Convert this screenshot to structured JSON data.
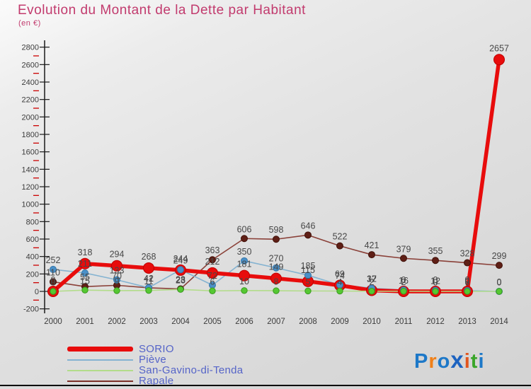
{
  "title": "Evolution du Montant de la Dette par Habitant",
  "subtitle": "(en €)",
  "colors": {
    "title": "#c23b6e",
    "legend_text": "#5564c8",
    "axis_text": "#3c3c3c",
    "data_label": "#474747",
    "axis_line": "#1a1a1a",
    "minor_tick": "#cc0000"
  },
  "chart_data": {
    "type": "line",
    "x": [
      2000,
      2001,
      2002,
      2003,
      2004,
      2005,
      2006,
      2007,
      2008,
      2009,
      2010,
      2011,
      2012,
      2013,
      2014
    ],
    "y_ticks": [
      2800,
      2600,
      2400,
      2200,
      2000,
      1800,
      1600,
      1400,
      1200,
      1000,
      800,
      600,
      400,
      200,
      0,
      -200
    ],
    "ylim": [
      -200,
      2800
    ],
    "grid": false,
    "legend_position": "bottom-left",
    "series": [
      {
        "name": "Rapale",
        "color": "#8a4038",
        "dot": "#5f1f16",
        "dot_stroke": "#401109",
        "width": 1.6,
        "r": 4.5,
        "dot_z": 1,
        "values": [
          110,
          55,
          70,
          41,
          28,
          363,
          606,
          598,
          646,
          522,
          421,
          379,
          355,
          328,
          299
        ]
      },
      {
        "name": "Piève",
        "color": "#85b3d1",
        "dot": "#4a90c8",
        "dot_stroke": "#3576a8",
        "width": 1.6,
        "r": 4.5,
        "dot_z": 3,
        "values": [
          252,
          211,
          133,
          42,
          249,
          72,
          350,
          270,
          185,
          74,
          37,
          16,
          12,
          9,
          0
        ]
      },
      {
        "name": "SORIO",
        "color": "#e80c0c",
        "dot": "#e80c0c",
        "dot_stroke": "#c00000",
        "width": 5.5,
        "r": 7.5,
        "dot_z": 2,
        "values": [
          0,
          318,
          294,
          268,
          244,
          212,
          181,
          149,
          115,
          69,
          12,
          0,
          0,
          0,
          2657
        ]
      },
      {
        "name": "San-Gavino-di-Tenda",
        "color": "#b2dc8a",
        "dot": "#55c832",
        "dot_stroke": "#3a9a20",
        "width": 1.6,
        "r": 4.2,
        "dot_z": 4,
        "values": [
          0,
          15,
          9,
          11,
          23,
          6,
          10,
          8,
          5,
          4,
          2,
          2,
          0,
          0,
          0
        ]
      }
    ]
  },
  "legend": {
    "items": [
      {
        "label": "SORIO",
        "color": "#e80c0c",
        "thick": true
      },
      {
        "label": "Piève",
        "color": "#85b3d1",
        "thick": false
      },
      {
        "label": "San-Gavino-di-Tenda",
        "color": "#b2dc8a",
        "thick": false
      },
      {
        "label": "Rapale",
        "color": "#7b3028",
        "thick": false
      }
    ]
  },
  "logo": {
    "letters": [
      {
        "ch": "P",
        "color": "#1d78c8",
        "big": false
      },
      {
        "ch": "r",
        "color": "#f08019",
        "big": false
      },
      {
        "ch": "o",
        "color": "#1d78c8",
        "big": false
      },
      {
        "ch": "x",
        "color": "#1d63c0",
        "big": true
      },
      {
        "ch": "i",
        "color": "#e2551e",
        "big": false
      },
      {
        "ch": "t",
        "color": "#3aa62a",
        "big": false
      },
      {
        "ch": "i",
        "color": "#1d78c8",
        "big": false
      }
    ]
  }
}
